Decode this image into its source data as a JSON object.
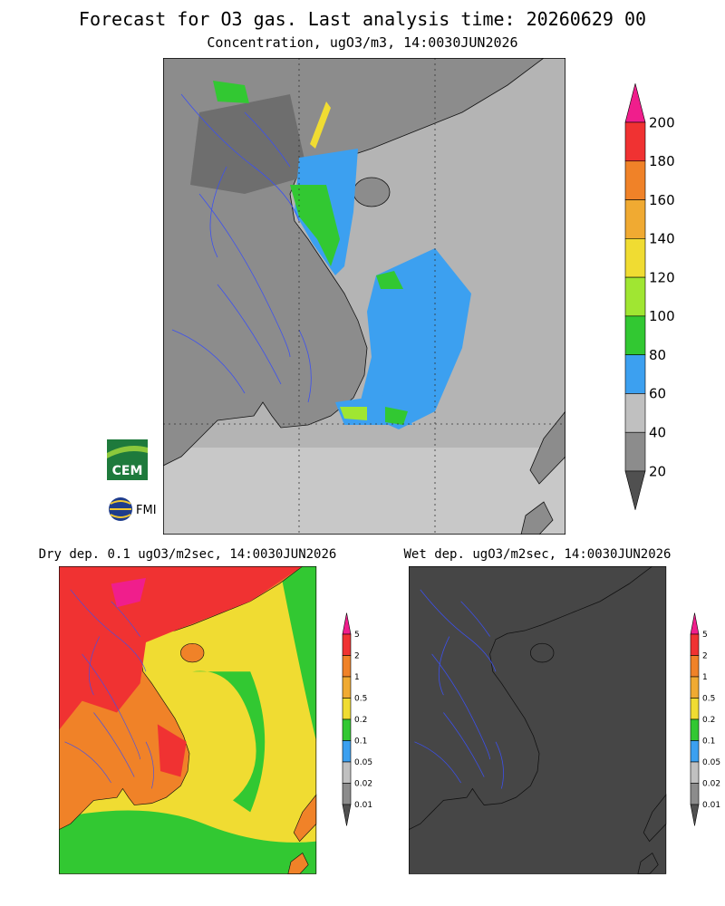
{
  "header": {
    "title": "Forecast for O3 gas. Last analysis time: 20260629 00",
    "subtitle": "Concentration, ugO3/m3, 14:0030JUN2026"
  },
  "main_colorbar": {
    "labels": [
      "200",
      "180",
      "160",
      "140",
      "120",
      "100",
      "80",
      "60",
      "40",
      "20"
    ],
    "colors": [
      "#f01e8c",
      "#f03232",
      "#f08228",
      "#f0aa32",
      "#f0dc32",
      "#a0e632",
      "#32c832",
      "#3ca0f0",
      "#c0c0c0",
      "#8c8c8c",
      "#505050"
    ]
  },
  "dry_dep": {
    "title": "Dry dep. 0.1 ugO3/m2sec, 14:0030JUN2026",
    "colorbar_labels": [
      "5",
      "2",
      "1",
      "0.5",
      "0.2",
      "0.1",
      "0.05",
      "0.02",
      "0.01"
    ]
  },
  "wet_dep": {
    "title": "Wet dep. ugO3/m2sec, 14:0030JUN2026",
    "colorbar_labels": [
      "5",
      "2",
      "1",
      "0.5",
      "0.2",
      "0.1",
      "0.05",
      "0.02",
      "0.01"
    ]
  },
  "small_colorbar_colors": [
    "#f01e8c",
    "#f03232",
    "#f08228",
    "#f0aa32",
    "#f0dc32",
    "#32c832",
    "#3ca0f0",
    "#c0c0c0",
    "#8c8c8c",
    "#505050"
  ],
  "logos": {
    "cem": "CEM",
    "fmi": "FMI"
  }
}
